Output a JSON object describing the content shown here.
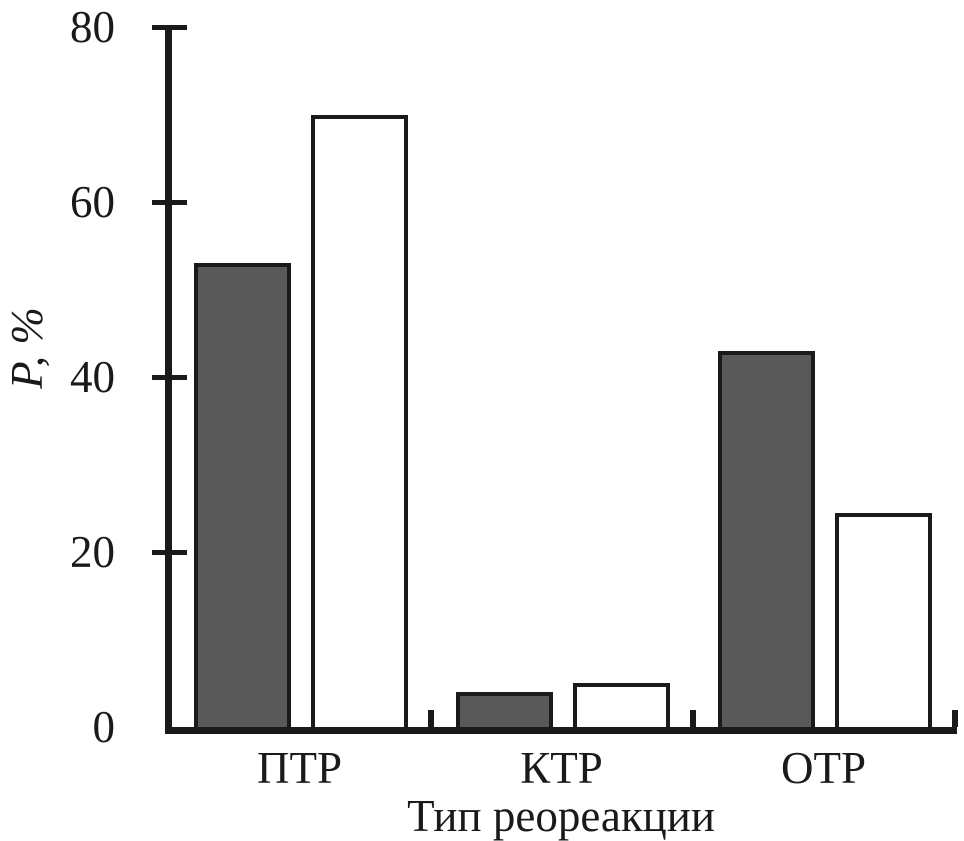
{
  "chart_data": {
    "type": "bar",
    "categories": [
      "ПТР",
      "КТР",
      "ОТР"
    ],
    "series": [
      {
        "name": "dark-gray-bars",
        "color": "#595959",
        "values": [
          53,
          4,
          43
        ]
      },
      {
        "name": "white-bars",
        "color": "#ffffff",
        "values": [
          70,
          5,
          24.5
        ]
      }
    ],
    "title": "",
    "xlabel": "Тип реореакции",
    "ylabel": "P, %",
    "yticks": [
      0,
      20,
      40,
      60,
      80
    ],
    "ylim": [
      0,
      80
    ],
    "grid": false,
    "legend": false,
    "bar_border_color": "#1a1a1a",
    "axis_color": "#1a1a1a",
    "background_color": "#ffffff"
  }
}
